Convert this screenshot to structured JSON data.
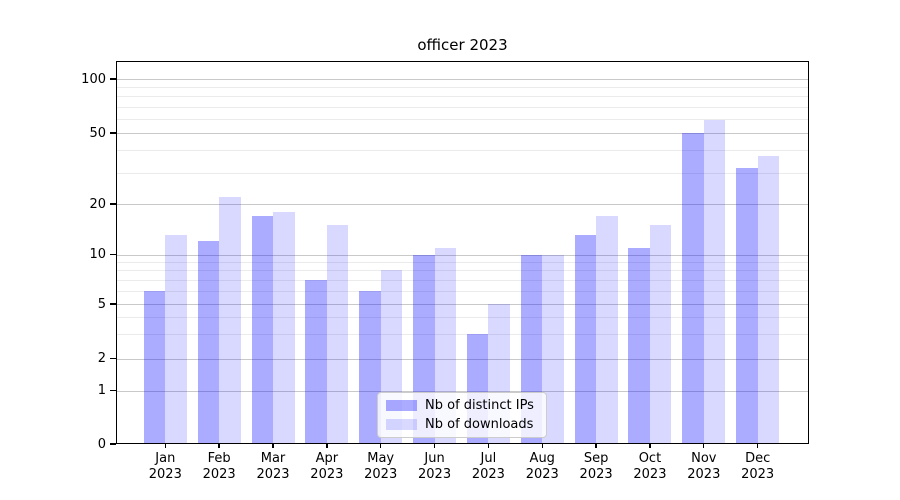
{
  "title": "officer 2023",
  "chart_data": {
    "type": "bar",
    "title": "officer 2023",
    "categories": [
      "Jan 2023",
      "Feb 2023",
      "Mar 2023",
      "Apr 2023",
      "May 2023",
      "Jun 2023",
      "Jul 2023",
      "Aug 2023",
      "Sep 2023",
      "Oct 2023",
      "Nov 2023",
      "Dec 2023"
    ],
    "series": [
      {
        "name": "Nb of distinct IPs",
        "color": "rgba(0,0,255,0.33)",
        "values": [
          6,
          12,
          17,
          7,
          6,
          10,
          3,
          10,
          13,
          11,
          50,
          32
        ]
      },
      {
        "name": "Nb of downloads",
        "color": "rgba(0,0,255,0.15)",
        "values": [
          13,
          22,
          18,
          15,
          8,
          11,
          5,
          10,
          17,
          15,
          59,
          37
        ]
      }
    ],
    "xlabel": "",
    "ylabel": "",
    "yscale": "symlog-like",
    "ylim": [
      0,
      115
    ],
    "y_major_ticks": [
      0,
      1,
      2,
      5,
      10,
      20,
      50,
      100
    ],
    "y_major_tick_labels": [
      "0",
      "1",
      "2",
      "5",
      "10",
      "20",
      "50",
      "100"
    ],
    "y_minor_gridlines": [
      3,
      4,
      6,
      7,
      8,
      9,
      30,
      40,
      60,
      70,
      80,
      90
    ],
    "grid": "major and minor horizontal gridlines",
    "legend_position": "lower center"
  },
  "legend": {
    "item1": "Nb of distinct IPs",
    "item2": "Nb of downloads"
  }
}
